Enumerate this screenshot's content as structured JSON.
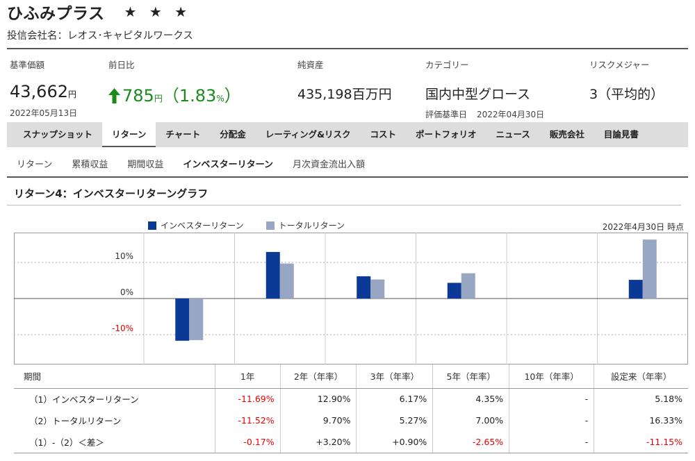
{
  "fund": {
    "name": "ひふみプラス",
    "stars": "★ ★ ★",
    "company": "投信会社名：レオス･キャピタルワークス"
  },
  "summary": {
    "nav": {
      "label": "基準価額",
      "value": "43,662",
      "unit": "円",
      "date": "2022年05月13日"
    },
    "change": {
      "label": "前日比",
      "value": "785",
      "unit": "円",
      "pct_open": "（",
      "pct": "1.83",
      "pct_unit": "%",
      "pct_close": "）",
      "direction": "up",
      "color": "#1a8a1a"
    },
    "assets": {
      "label": "純資産",
      "value": "435,198百万円"
    },
    "category": {
      "label": "カテゴリー",
      "value": "国内中型グロース",
      "basis_label": "評価基準日",
      "basis_date": "2022年04月30日"
    },
    "risk": {
      "label": "リスクメジャー",
      "value": "3（平均的）"
    }
  },
  "tabs": [
    "スナップショット",
    "リターン",
    "チャート",
    "分配金",
    "レーティング&リスク",
    "コスト",
    "ポートフォリオ",
    "ニュース",
    "販売会社",
    "目論見書"
  ],
  "active_tab": "リターン",
  "subtabs": [
    "リターン",
    "累積収益",
    "期間収益",
    "インベスターリターン",
    "月次資金流出入額"
  ],
  "active_subtab": "インベスターリターン",
  "section_title": "リターン4：インベスターリターングラフ",
  "chart_data": {
    "type": "bar",
    "categories": [
      "1年",
      "2年（年率）",
      "3年（年率）",
      "5年（年率）",
      "10年（年率）",
      "設定来（年率）"
    ],
    "series": [
      {
        "name": "インベスターリターン",
        "color": "#0a3a96",
        "values": [
          -11.69,
          12.9,
          6.17,
          4.35,
          null,
          5.18
        ]
      },
      {
        "name": "トータルリターン",
        "color": "#97a6c3",
        "values": [
          -11.52,
          9.7,
          5.27,
          7.0,
          null,
          16.33
        ]
      }
    ],
    "yticks": [
      {
        "value": 10,
        "label": "10%"
      },
      {
        "value": 0,
        "label": "0%"
      },
      {
        "value": -10,
        "label": "-10%"
      }
    ],
    "ylim": [
      -18,
      18
    ],
    "as_of": "2022年4月30日 時点",
    "legend_position": "top-left"
  },
  "table": {
    "header": [
      "期間",
      "1年",
      "2年（年率）",
      "3年（年率）",
      "5年（年率）",
      "10年（年率）",
      "設定来（年率）"
    ],
    "rows": [
      {
        "label": "（1）インベスターリターン",
        "cells": [
          "-11.69%",
          "12.90%",
          "6.17%",
          "4.35%",
          "-",
          "5.18%"
        ]
      },
      {
        "label": "（2）トータルリターン",
        "cells": [
          "-11.52%",
          "9.70%",
          "5.27%",
          "7.00%",
          "-",
          "16.33%"
        ]
      },
      {
        "label": "（1）-（2）＜差＞",
        "cells": [
          "-0.17%",
          "+3.20%",
          "+0.90%",
          "-2.65%",
          "-",
          "-11.15%"
        ]
      }
    ]
  }
}
